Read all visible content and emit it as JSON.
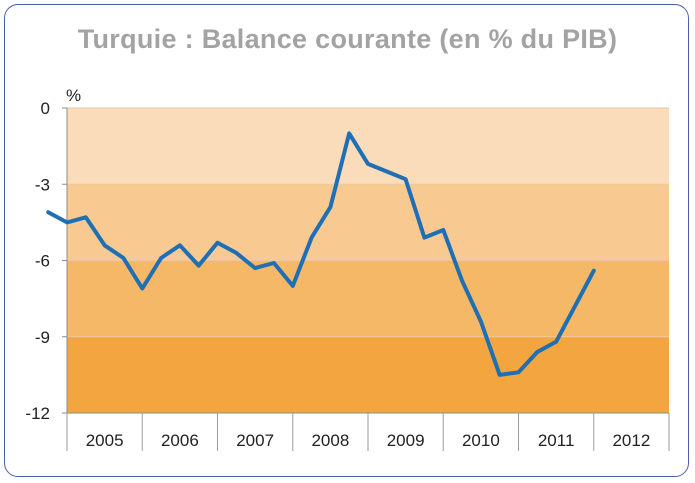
{
  "title": "Turquie : Balance courante (en % du PIB)",
  "chart_data": {
    "type": "line",
    "title": "Turquie : Balance courante (en % du PIB)",
    "ylabel": "%",
    "ylim": [
      -12,
      0
    ],
    "yticks": [
      0,
      -3,
      -6,
      -9,
      -12
    ],
    "ytick_labels": [
      "0",
      "-3",
      "-6",
      "-9",
      "-12"
    ],
    "categories": [
      "2005",
      "2006",
      "2007",
      "2008",
      "2009",
      "2010",
      "2011",
      "2012"
    ],
    "bands": [
      {
        "from": 0,
        "to": -3,
        "color": "#fbdcba"
      },
      {
        "from": -3,
        "to": -6,
        "color": "#f8ca92"
      },
      {
        "from": -6,
        "to": -9,
        "color": "#f5b866"
      },
      {
        "from": -9,
        "to": -12,
        "color": "#f3a540"
      }
    ],
    "line_color": "#1f6fb5",
    "series": [
      {
        "x": [
          2004.75,
          2005.0,
          2005.25,
          2005.5,
          2005.75,
          2006.0,
          2006.25,
          2006.5,
          2006.75,
          2007.0,
          2007.25,
          2007.5,
          2007.75,
          2008.0,
          2008.25,
          2008.5,
          2008.75,
          2009.0,
          2009.25,
          2009.5,
          2009.75,
          2010.0,
          2010.25,
          2010.5,
          2010.75,
          2011.0,
          2011.25,
          2011.5,
          2011.75,
          2012.0,
          2012.25
        ],
        "values": [
          -4.1,
          -4.5,
          -4.3,
          -5.4,
          -5.9,
          -7.1,
          -5.9,
          -5.4,
          -6.2,
          -5.3,
          -5.7,
          -6.3,
          -6.1,
          -7.0,
          -5.1,
          -3.9,
          -1.0,
          -2.2,
          -2.5,
          -2.8,
          -5.1,
          -4.8,
          -6.8,
          -8.4,
          -10.5,
          -10.4,
          -9.6,
          -9.2,
          -7.8,
          -6.4,
          null
        ]
      }
    ]
  }
}
